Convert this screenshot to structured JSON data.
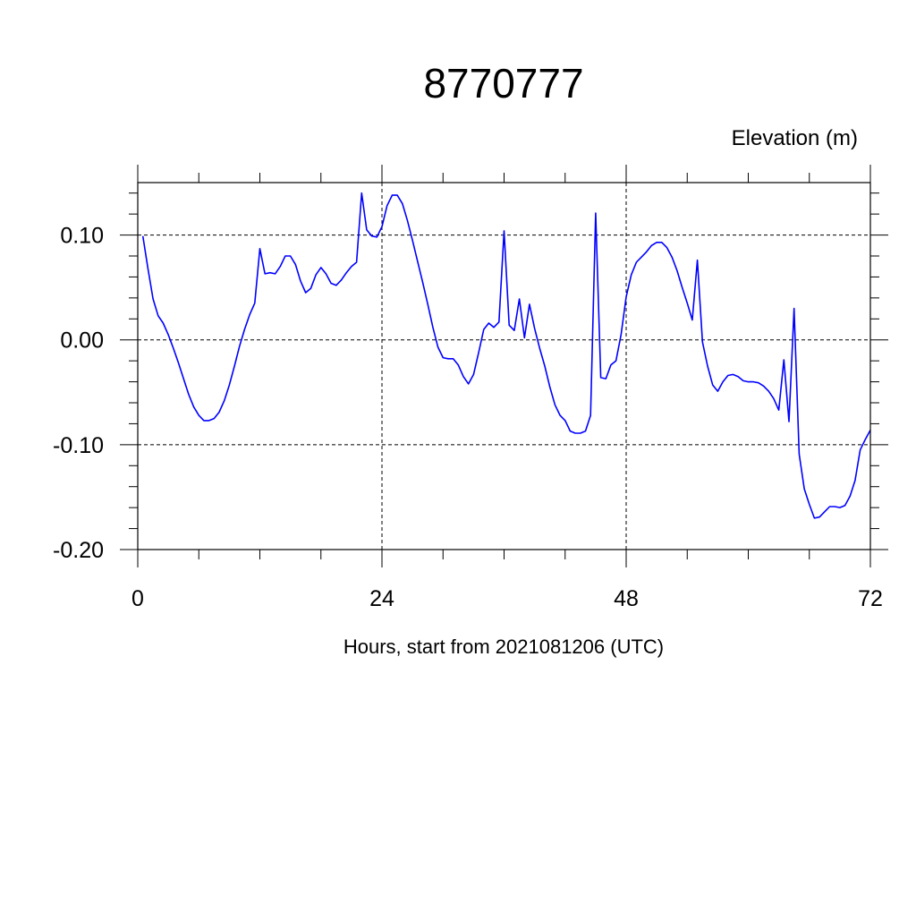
{
  "chart_data": {
    "type": "line",
    "title": "8770777",
    "ylabel": "Elevation (m)",
    "xlabel": "Hours, start from 2021081206 (UTC)",
    "xlim": [
      0,
      72
    ],
    "ylim": [
      -0.2,
      0.15
    ],
    "x_ticks": [
      0,
      24,
      48,
      72
    ],
    "x_tick_labels": [
      "0",
      "24",
      "48",
      "72"
    ],
    "y_ticks": [
      -0.2,
      -0.1,
      0.0,
      0.1
    ],
    "y_tick_labels": [
      "-0.20",
      "-0.10",
      "0.00",
      "0.10"
    ],
    "grid": "dashed at major ticks",
    "line_color": "#0000ff",
    "series": [
      {
        "points": [
          [
            0.5,
            0.099
          ],
          [
            1.0,
            0.068
          ],
          [
            1.5,
            0.039
          ],
          [
            2.0,
            0.023
          ],
          [
            2.5,
            0.016
          ],
          [
            3.0,
            0.005
          ],
          [
            3.5,
            -0.008
          ],
          [
            4.0,
            -0.022
          ],
          [
            4.5,
            -0.037
          ],
          [
            5.0,
            -0.052
          ],
          [
            5.5,
            -0.064
          ],
          [
            6.0,
            -0.072
          ],
          [
            6.5,
            -0.077
          ],
          [
            7.0,
            -0.077
          ],
          [
            7.5,
            -0.075
          ],
          [
            8.0,
            -0.069
          ],
          [
            8.5,
            -0.058
          ],
          [
            9.0,
            -0.043
          ],
          [
            9.5,
            -0.025
          ],
          [
            10.0,
            -0.006
          ],
          [
            10.5,
            0.01
          ],
          [
            11.0,
            0.024
          ],
          [
            11.5,
            0.035
          ],
          [
            12.0,
            0.087
          ],
          [
            12.5,
            0.063
          ],
          [
            13.0,
            0.064
          ],
          [
            13.5,
            0.063
          ],
          [
            14.0,
            0.07
          ],
          [
            14.5,
            0.08
          ],
          [
            15.0,
            0.08
          ],
          [
            15.5,
            0.072
          ],
          [
            16.0,
            0.056
          ],
          [
            16.5,
            0.045
          ],
          [
            17.0,
            0.049
          ],
          [
            17.5,
            0.062
          ],
          [
            18.0,
            0.069
          ],
          [
            18.5,
            0.063
          ],
          [
            19.0,
            0.054
          ],
          [
            19.5,
            0.052
          ],
          [
            20.0,
            0.057
          ],
          [
            20.5,
            0.064
          ],
          [
            21.0,
            0.07
          ],
          [
            21.5,
            0.074
          ],
          [
            22.0,
            0.14
          ],
          [
            22.5,
            0.105
          ],
          [
            23.0,
            0.099
          ],
          [
            23.5,
            0.098
          ],
          [
            24.0,
            0.108
          ],
          [
            24.5,
            0.128
          ],
          [
            25.0,
            0.138
          ],
          [
            25.5,
            0.138
          ],
          [
            26.0,
            0.13
          ],
          [
            26.5,
            0.114
          ],
          [
            27.0,
            0.095
          ],
          [
            27.5,
            0.075
          ],
          [
            28.0,
            0.055
          ],
          [
            28.5,
            0.034
          ],
          [
            29.0,
            0.012
          ],
          [
            29.5,
            -0.007
          ],
          [
            30.0,
            -0.017
          ],
          [
            30.5,
            -0.018
          ],
          [
            31.0,
            -0.018
          ],
          [
            31.5,
            -0.024
          ],
          [
            32.0,
            -0.035
          ],
          [
            32.5,
            -0.042
          ],
          [
            33.0,
            -0.033
          ],
          [
            33.5,
            -0.012
          ],
          [
            34.0,
            0.01
          ],
          [
            34.5,
            0.016
          ],
          [
            35.0,
            0.012
          ],
          [
            35.5,
            0.017
          ],
          [
            36.0,
            0.104
          ],
          [
            36.5,
            0.014
          ],
          [
            37.0,
            0.009
          ],
          [
            37.5,
            0.039
          ],
          [
            38.0,
            0.002
          ],
          [
            38.5,
            0.034
          ],
          [
            39.0,
            0.011
          ],
          [
            39.5,
            -0.008
          ],
          [
            40.0,
            -0.025
          ],
          [
            40.5,
            -0.045
          ],
          [
            41.0,
            -0.062
          ],
          [
            41.5,
            -0.072
          ],
          [
            42.0,
            -0.077
          ],
          [
            42.5,
            -0.087
          ],
          [
            43.0,
            -0.089
          ],
          [
            43.5,
            -0.089
          ],
          [
            44.0,
            -0.087
          ],
          [
            44.5,
            -0.072
          ],
          [
            45.0,
            0.121
          ],
          [
            45.5,
            -0.036
          ],
          [
            46.0,
            -0.037
          ],
          [
            46.5,
            -0.024
          ],
          [
            47.0,
            -0.02
          ],
          [
            47.5,
            0.005
          ],
          [
            48.0,
            0.041
          ],
          [
            48.5,
            0.062
          ],
          [
            49.0,
            0.074
          ],
          [
            49.5,
            0.079
          ],
          [
            50.0,
            0.084
          ],
          [
            50.5,
            0.09
          ],
          [
            51.0,
            0.093
          ],
          [
            51.5,
            0.093
          ],
          [
            52.0,
            0.088
          ],
          [
            52.5,
            0.079
          ],
          [
            53.0,
            0.066
          ],
          [
            53.5,
            0.05
          ],
          [
            54.0,
            0.035
          ],
          [
            54.5,
            0.019
          ],
          [
            55.0,
            0.076
          ],
          [
            55.5,
            -0.002
          ],
          [
            56.0,
            -0.025
          ],
          [
            56.5,
            -0.043
          ],
          [
            57.0,
            -0.049
          ],
          [
            57.5,
            -0.04
          ],
          [
            58.0,
            -0.034
          ],
          [
            58.5,
            -0.033
          ],
          [
            59.0,
            -0.035
          ],
          [
            59.5,
            -0.039
          ],
          [
            60.0,
            -0.04
          ],
          [
            60.5,
            -0.04
          ],
          [
            61.0,
            -0.041
          ],
          [
            61.5,
            -0.044
          ],
          [
            62.0,
            -0.049
          ],
          [
            62.5,
            -0.056
          ],
          [
            63.0,
            -0.067
          ],
          [
            63.5,
            -0.019
          ],
          [
            64.0,
            -0.078
          ],
          [
            64.5,
            0.03
          ],
          [
            65.0,
            -0.109
          ],
          [
            65.5,
            -0.142
          ],
          [
            66.0,
            -0.157
          ],
          [
            66.5,
            -0.17
          ],
          [
            67.0,
            -0.169
          ],
          [
            67.5,
            -0.164
          ],
          [
            68.0,
            -0.159
          ],
          [
            68.5,
            -0.159
          ],
          [
            69.0,
            -0.16
          ],
          [
            69.5,
            -0.158
          ],
          [
            70.0,
            -0.149
          ],
          [
            70.5,
            -0.134
          ],
          [
            71.0,
            -0.105
          ],
          [
            71.5,
            -0.095
          ],
          [
            72.0,
            -0.086
          ]
        ]
      }
    ]
  }
}
